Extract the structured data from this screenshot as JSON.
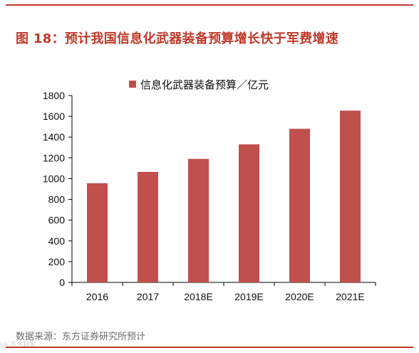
{
  "figure": {
    "title": "图 18：预计我国信息化武器装备预算增长快于军费增速",
    "source": "数据来源：东方证券研究所预计",
    "watermark": "i@ 东方财富"
  },
  "colors": {
    "accent": "#c0392b",
    "bar": "#c0504d",
    "axis": "#000000"
  },
  "chart_data": {
    "type": "bar",
    "categories": [
      "2016",
      "2017",
      "2018E",
      "2019E",
      "2020E",
      "2021E"
    ],
    "series": [
      {
        "name": "信息化武器装备预算／亿元",
        "values": [
          955,
          1065,
          1190,
          1330,
          1480,
          1655
        ]
      }
    ],
    "ylim": [
      0,
      1800
    ],
    "yticks": [
      0,
      200,
      400,
      600,
      800,
      1000,
      1200,
      1400,
      1600,
      1800
    ],
    "grid": false,
    "legend_position": "top-center"
  }
}
